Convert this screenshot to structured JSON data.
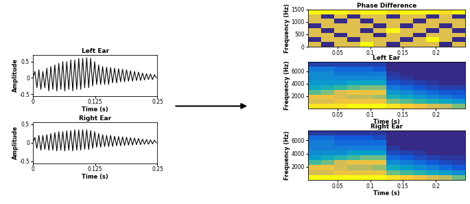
{
  "chart_data": [
    {
      "type": "line",
      "title": "Left Ear",
      "x_label": "Time (s)",
      "y_label": "Amplitude",
      "color": "#000000",
      "x": [
        0,
        0.004,
        0.008,
        0.012,
        0.016,
        0.02,
        0.024,
        0.028,
        0.032,
        0.036,
        0.04,
        0.044,
        0.048,
        0.052,
        0.056,
        0.06,
        0.064,
        0.068,
        0.072,
        0.076,
        0.08,
        0.084,
        0.088,
        0.092,
        0.096,
        0.1,
        0.104,
        0.108,
        0.112,
        0.116,
        0.12,
        0.124,
        0.128,
        0.132,
        0.136,
        0.14,
        0.144,
        0.148,
        0.152,
        0.156,
        0.16,
        0.164,
        0.168,
        0.172,
        0.176,
        0.18,
        0.184,
        0.188,
        0.192,
        0.196,
        0.2,
        0.204,
        0.208,
        0.212,
        0.216,
        0.22,
        0.224,
        0.228,
        0.232,
        0.236,
        0.24,
        0.244,
        0.248
      ],
      "values": [
        0.0,
        0.2,
        -0.3,
        0.25,
        -0.35,
        0.2,
        -0.3,
        0.3,
        -0.4,
        0.35,
        -0.35,
        0.4,
        -0.4,
        0.45,
        -0.35,
        0.5,
        -0.4,
        0.5,
        -0.35,
        0.55,
        -0.4,
        0.55,
        -0.35,
        0.6,
        -0.35,
        0.6,
        -0.3,
        0.62,
        -0.3,
        0.6,
        -0.25,
        0.5,
        -0.2,
        0.4,
        -0.2,
        0.35,
        -0.2,
        0.33,
        -0.2,
        0.32,
        -0.15,
        0.3,
        -0.15,
        0.28,
        -0.12,
        0.27,
        -0.12,
        0.25,
        -0.1,
        0.22,
        -0.1,
        0.2,
        -0.08,
        0.18,
        -0.08,
        0.15,
        -0.06,
        0.13,
        -0.05,
        0.12,
        -0.05,
        0.1,
        0.0
      ],
      "xlim": [
        0,
        0.25
      ],
      "ylim": [
        -0.55,
        0.7
      ],
      "xticks": [
        0,
        0.125,
        0.25
      ],
      "yticks": [
        -0.5,
        0,
        0.5
      ]
    },
    {
      "type": "line",
      "title": "Right Ear",
      "x_label": "Time (s)",
      "y_label": "Amplitude",
      "color": "#000000",
      "x": [
        0,
        0.004,
        0.008,
        0.012,
        0.016,
        0.02,
        0.024,
        0.028,
        0.032,
        0.036,
        0.04,
        0.044,
        0.048,
        0.052,
        0.056,
        0.06,
        0.064,
        0.068,
        0.072,
        0.076,
        0.08,
        0.084,
        0.088,
        0.092,
        0.096,
        0.1,
        0.104,
        0.108,
        0.112,
        0.116,
        0.12,
        0.124,
        0.128,
        0.132,
        0.136,
        0.14,
        0.144,
        0.148,
        0.152,
        0.156,
        0.16,
        0.164,
        0.168,
        0.172,
        0.176,
        0.18,
        0.184,
        0.188,
        0.192,
        0.196,
        0.2,
        0.204,
        0.208,
        0.212,
        0.216,
        0.22,
        0.224,
        0.228,
        0.232,
        0.236,
        0.24,
        0.244,
        0.248
      ],
      "values": [
        0.0,
        0.15,
        -0.15,
        0.2,
        -0.2,
        0.2,
        -0.18,
        0.22,
        -0.2,
        0.25,
        -0.2,
        0.28,
        -0.22,
        0.3,
        -0.2,
        0.3,
        -0.22,
        0.32,
        -0.2,
        0.33,
        -0.22,
        0.35,
        -0.2,
        0.35,
        -0.2,
        0.35,
        -0.18,
        0.35,
        -0.18,
        0.33,
        -0.15,
        0.3,
        -0.12,
        0.25,
        -0.12,
        0.22,
        -0.1,
        0.2,
        -0.1,
        0.2,
        -0.1,
        0.18,
        -0.08,
        0.17,
        -0.08,
        0.16,
        -0.07,
        0.15,
        -0.06,
        0.14,
        -0.06,
        0.13,
        -0.05,
        0.12,
        -0.05,
        0.1,
        -0.04,
        0.09,
        -0.04,
        0.08,
        -0.03,
        0.07,
        0.0
      ],
      "xlim": [
        0,
        0.25
      ],
      "ylim": [
        -0.55,
        0.55
      ],
      "xticks": [
        0,
        0.125,
        0.25
      ],
      "yticks": [
        -0.5,
        0,
        0.5
      ]
    },
    {
      "type": "heatmap",
      "title": "Phase Difference",
      "y_label": "Frequency (Hz)",
      "x_edges": [
        0.005,
        0.025,
        0.045,
        0.065,
        0.085,
        0.105,
        0.125,
        0.145,
        0.165,
        0.185,
        0.205,
        0.225,
        0.245
      ],
      "y_edges": [
        0,
        187.5,
        375,
        562.5,
        750,
        937.5,
        1125,
        1312.5,
        1500
      ],
      "cells": [
        [
          0.7,
          0.15,
          0.7,
          0.7,
          0.85,
          0.7,
          0.15,
          0.7,
          0.7,
          0.7,
          0.15,
          0.7
        ],
        [
          0.15,
          0.7,
          0.7,
          0.15,
          0.7,
          0.7,
          0.7,
          0.15,
          0.7,
          0.85,
          0.7,
          0.15
        ],
        [
          0.7,
          0.7,
          0.15,
          0.7,
          0.7,
          0.15,
          0.7,
          0.7,
          0.15,
          0.7,
          0.7,
          0.7
        ],
        [
          0.7,
          0.15,
          0.7,
          0.7,
          0.15,
          0.7,
          0.85,
          0.7,
          0.7,
          0.15,
          0.7,
          0.15
        ],
        [
          0.15,
          0.7,
          0.7,
          0.7,
          0.7,
          0.15,
          0.7,
          0.15,
          0.7,
          0.7,
          0.15,
          0.7
        ],
        [
          0.7,
          0.7,
          0.15,
          0.7,
          0.15,
          0.7,
          0.7,
          0.7,
          0.15,
          0.7,
          0.7,
          0.7
        ],
        [
          0.7,
          0.15,
          0.7,
          0.15,
          0.7,
          0.7,
          0.15,
          0.7,
          0.7,
          0.15,
          0.7,
          0.15
        ],
        [
          0.85,
          0.85,
          0.85,
          0.8,
          0.85,
          0.85,
          0.8,
          0.85,
          0.85,
          0.85,
          0.8,
          0.85
        ]
      ],
      "xlim": [
        0.005,
        0.245
      ],
      "ylim": [
        0,
        1500
      ],
      "xticks": [
        0.05,
        0.1,
        0.15,
        0.2
      ],
      "yticks": [
        0,
        500,
        1000,
        1500
      ]
    },
    {
      "type": "heatmap",
      "title": "Left Ear",
      "x_label": "Time (s)",
      "y_label": "Frequency (Hz)",
      "x_edges": [
        0.005,
        0.025,
        0.045,
        0.065,
        0.085,
        0.105,
        0.125,
        0.145,
        0.165,
        0.185,
        0.205,
        0.225,
        0.245
      ],
      "y_edges": [
        0,
        750,
        1500,
        2250,
        3000,
        3750,
        4500,
        5250,
        6000,
        6750,
        7500
      ],
      "cells": [
        [
          0.9,
          0.9,
          0.9,
          0.95,
          0.95,
          0.95,
          0.9,
          0.85,
          0.8,
          0.75,
          0.7,
          0.6
        ],
        [
          0.75,
          0.75,
          0.8,
          0.8,
          0.8,
          0.8,
          0.6,
          0.55,
          0.5,
          0.45,
          0.4,
          0.35
        ],
        [
          0.8,
          0.8,
          0.75,
          0.7,
          0.7,
          0.65,
          0.45,
          0.4,
          0.35,
          0.3,
          0.25,
          0.2
        ],
        [
          0.55,
          0.6,
          0.75,
          0.8,
          0.8,
          0.8,
          0.35,
          0.3,
          0.25,
          0.2,
          0.15,
          0.15
        ],
        [
          0.4,
          0.45,
          0.5,
          0.55,
          0.6,
          0.6,
          0.25,
          0.2,
          0.15,
          0.12,
          0.1,
          0.1
        ],
        [
          0.35,
          0.35,
          0.35,
          0.4,
          0.4,
          0.4,
          0.15,
          0.12,
          0.1,
          0.08,
          0.05,
          0.05
        ],
        [
          0.3,
          0.3,
          0.3,
          0.3,
          0.3,
          0.3,
          0.1,
          0.08,
          0.05,
          0.05,
          0.05,
          0.05
        ],
        [
          0.3,
          0.3,
          0.25,
          0.25,
          0.25,
          0.25,
          0.08,
          0.05,
          0.05,
          0.05,
          0.05,
          0.05
        ],
        [
          0.25,
          0.25,
          0.2,
          0.2,
          0.2,
          0.15,
          0.05,
          0.05,
          0.05,
          0.05,
          0.05,
          0.05
        ],
        [
          0.1,
          0.1,
          0.1,
          0.1,
          0.1,
          0.1,
          0.05,
          0.05,
          0.05,
          0.05,
          0.05,
          0.05
        ]
      ],
      "xlim": [
        0.005,
        0.245
      ],
      "ylim": [
        0,
        7500
      ],
      "xticks": [
        0.05,
        0.1,
        0.15,
        0.2
      ],
      "yticks": [
        2000,
        4000,
        6000
      ]
    },
    {
      "type": "heatmap",
      "title": "Right Ear",
      "x_label": "Time (s)",
      "y_label": "Frequency (Hz)",
      "x_edges": [
        0.005,
        0.025,
        0.045,
        0.065,
        0.085,
        0.105,
        0.125,
        0.145,
        0.165,
        0.185,
        0.205,
        0.225,
        0.245
      ],
      "y_edges": [
        0,
        750,
        1500,
        2250,
        3000,
        3750,
        4500,
        5250,
        6000,
        6750,
        7500
      ],
      "cells": [
        [
          0.9,
          0.9,
          0.9,
          0.9,
          0.9,
          0.9,
          0.85,
          0.8,
          0.75,
          0.7,
          0.65,
          0.55
        ],
        [
          0.7,
          0.7,
          0.75,
          0.75,
          0.75,
          0.75,
          0.55,
          0.5,
          0.45,
          0.4,
          0.35,
          0.3
        ],
        [
          0.75,
          0.75,
          0.7,
          0.65,
          0.65,
          0.6,
          0.4,
          0.35,
          0.3,
          0.25,
          0.2,
          0.15
        ],
        [
          0.5,
          0.55,
          0.7,
          0.75,
          0.75,
          0.75,
          0.3,
          0.25,
          0.2,
          0.15,
          0.12,
          0.1
        ],
        [
          0.35,
          0.4,
          0.45,
          0.5,
          0.55,
          0.55,
          0.2,
          0.15,
          0.12,
          0.1,
          0.08,
          0.08
        ],
        [
          0.3,
          0.3,
          0.3,
          0.35,
          0.35,
          0.35,
          0.12,
          0.1,
          0.08,
          0.05,
          0.05,
          0.05
        ],
        [
          0.25,
          0.25,
          0.25,
          0.25,
          0.25,
          0.25,
          0.08,
          0.05,
          0.05,
          0.05,
          0.05,
          0.05
        ],
        [
          0.25,
          0.25,
          0.2,
          0.2,
          0.2,
          0.2,
          0.05,
          0.05,
          0.05,
          0.05,
          0.05,
          0.05
        ],
        [
          0.2,
          0.2,
          0.15,
          0.15,
          0.15,
          0.12,
          0.05,
          0.05,
          0.05,
          0.05,
          0.05,
          0.05
        ],
        [
          0.08,
          0.08,
          0.08,
          0.08,
          0.08,
          0.08,
          0.05,
          0.05,
          0.05,
          0.05,
          0.05,
          0.05
        ]
      ],
      "xlim": [
        0.005,
        0.245
      ],
      "ylim": [
        0,
        7500
      ],
      "xticks": [
        0.05,
        0.1,
        0.15,
        0.2
      ],
      "yticks": [
        2000,
        4000,
        6000
      ]
    }
  ]
}
